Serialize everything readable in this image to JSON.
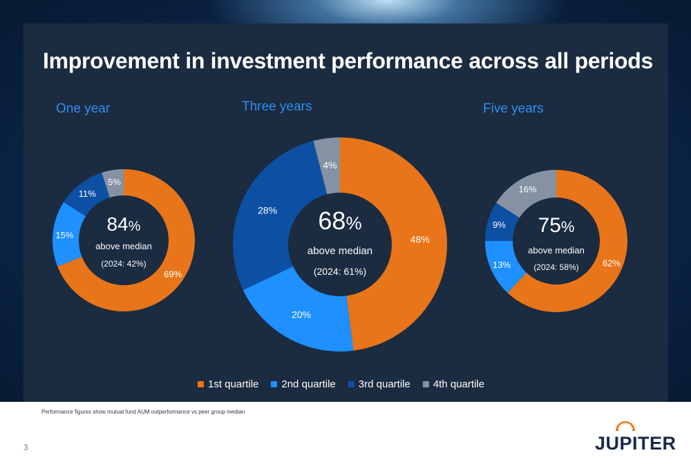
{
  "title": "Improvement in investment performance across all periods",
  "colors": {
    "q1": "#e8751a",
    "q2": "#1e90ff",
    "q3": "#0d4fa3",
    "q4": "#8592a3"
  },
  "legend": [
    {
      "label": "1st quartile",
      "color": "#e8751a"
    },
    {
      "label": "2nd quartile",
      "color": "#1e90ff"
    },
    {
      "label": "3rd quartile",
      "color": "#0d4fa3"
    },
    {
      "label": "4th quartile",
      "color": "#8592a3"
    }
  ],
  "chart_data": [
    {
      "type": "pie",
      "title": "One year",
      "categories": [
        "1st quartile",
        "2nd quartile",
        "3rd quartile",
        "4th quartile"
      ],
      "values": [
        69,
        15,
        11,
        5
      ],
      "value_labels": [
        "69%",
        "15%",
        "11%",
        "5%"
      ],
      "center_number": "84",
      "center_unit": "%",
      "center_text": "above median",
      "center_sub": "(2024: 42%)"
    },
    {
      "type": "pie",
      "title": "Three years",
      "categories": [
        "1st quartile",
        "2nd quartile",
        "3rd quartile",
        "4th quartile"
      ],
      "values": [
        48,
        20,
        28,
        4
      ],
      "value_labels": [
        "48%",
        "20%",
        "28%",
        "4%"
      ],
      "center_number": "68",
      "center_unit": "%",
      "center_text": "above median",
      "center_sub": "(2024: 61%)"
    },
    {
      "type": "pie",
      "title": "Five years",
      "categories": [
        "1st quartile",
        "2nd quartile",
        "3rd quartile",
        "4th quartile"
      ],
      "values": [
        62,
        13,
        9,
        16
      ],
      "value_labels": [
        "62%",
        "13%",
        "9%",
        "16%"
      ],
      "center_number": "75",
      "center_unit": "%",
      "center_text": "above median",
      "center_sub": "(2024: 58%)"
    }
  ],
  "footnote": "Performance figures show mutual fund AUM outperformance vs peer group median",
  "page_number": "3",
  "logo": {
    "text": "JUPITER"
  }
}
